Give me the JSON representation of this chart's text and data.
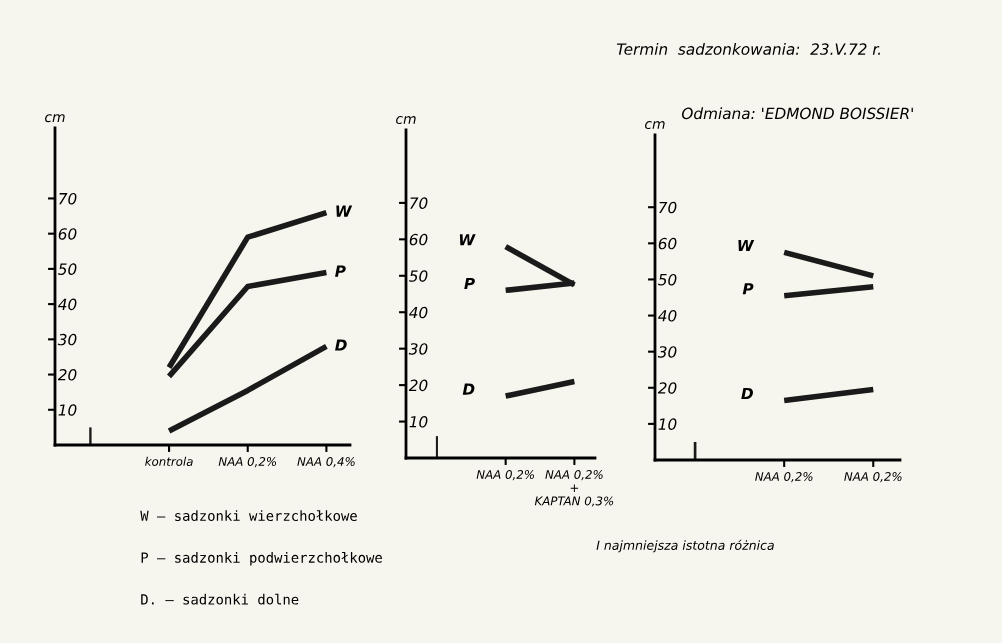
{
  "chart_data": [
    {
      "type": "line",
      "ylabel": "cm",
      "categories": [
        null,
        "kontrola",
        "NAA 0,2%",
        "NAA 0,4%"
      ],
      "ylim": [
        0,
        90
      ],
      "yticks": [
        10,
        20,
        30,
        40,
        50,
        60,
        70
      ],
      "series": [
        {
          "name": "W",
          "color": "#1a1a1a",
          "values": [
            null,
            22,
            59,
            66
          ]
        },
        {
          "name": "P",
          "color": "#1a1a1a",
          "values": [
            null,
            19.5,
            45,
            49
          ]
        },
        {
          "name": "D",
          "color": "#1a1a1a",
          "values": [
            null,
            4,
            15.5,
            28
          ]
        },
        {
          "type": "bar",
          "color": "#1a1a1a",
          "values": [
            5,
            null,
            null,
            null
          ]
        }
      ],
      "annotations": [
        "W — sadzonki wierzchołkowe",
        "P — sadzonki podwierzchołkowe",
        "D. — sadzonki dolne"
      ]
    },
    {
      "type": "line",
      "ylabel": "cm",
      "categories": [
        null,
        "NAA 0,2%",
        "NAA 0,2%\n+\nKAPTAN 0,3%"
      ],
      "ylim": [
        0,
        90
      ],
      "yticks": [
        10,
        20,
        30,
        40,
        50,
        60,
        70
      ],
      "series": [
        {
          "name": "W",
          "color": "#1a1a1a",
          "values": [
            null,
            58,
            47.5
          ]
        },
        {
          "name": "P",
          "color": "#1a1a1a",
          "values": [
            null,
            46,
            48
          ]
        },
        {
          "name": "D",
          "color": "#1a1a1a",
          "values": [
            null,
            17,
            21
          ]
        },
        {
          "type": "bar",
          "color": "#1a1a1a",
          "values": [
            6,
            null,
            null
          ]
        }
      ]
    },
    {
      "type": "line",
      "ylabel": "cm",
      "categories": [
        null,
        "NAA 0,2%",
        "NAA 0,2%"
      ],
      "ylim": [
        0,
        90
      ],
      "yticks": [
        10,
        20,
        30,
        40,
        50,
        60,
        70
      ],
      "series": [
        {
          "name": "W",
          "color": "#1a1a1a",
          "values": [
            null,
            57.5,
            51
          ]
        },
        {
          "name": "P",
          "color": "#1a1a1a",
          "values": [
            null,
            45.5,
            48
          ]
        },
        {
          "name": "D",
          "color": "#1a1a1a",
          "values": [
            null,
            16.5,
            19.5
          ]
        },
        {
          "type": "bar",
          "color": "#1a1a1a",
          "values": [
            5,
            null,
            null
          ]
        }
      ],
      "annotations": [
        "Termin  sadzonkowania:  23.V.72 r.",
        "Odmiana: 'EDMOND BOISSIER'",
        "I najmniejsza istotna różnica"
      ]
    }
  ]
}
